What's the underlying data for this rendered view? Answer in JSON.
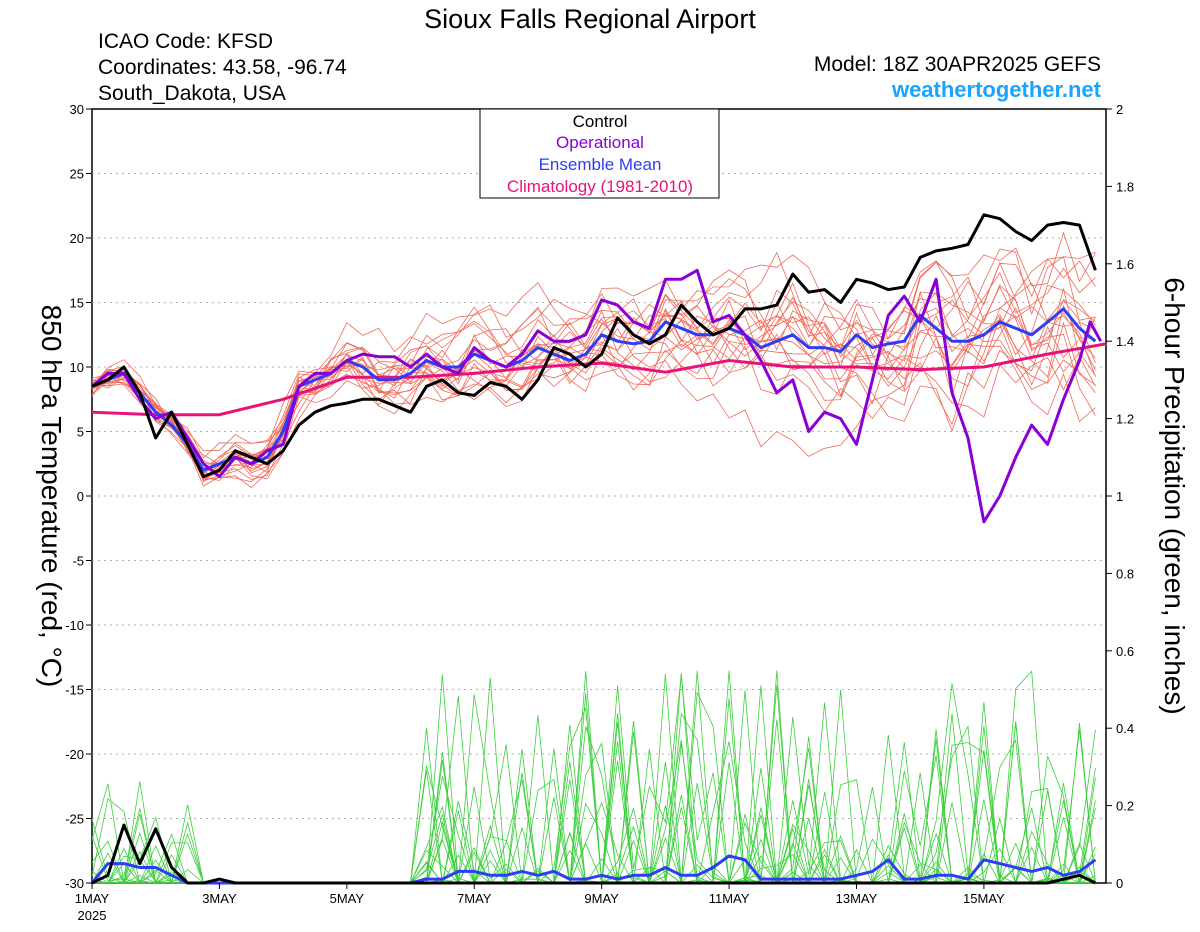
{
  "header": {
    "title": "Sioux Falls Regional Airport",
    "icao": "ICAO Code: KFSD",
    "coordinates": "Coordinates: 43.58, -96.74",
    "region": "South_Dakota, USA",
    "model": "Model: 18Z 30APR2025 GEFS",
    "site": "weathertogether.net"
  },
  "chart_data": {
    "type": "line",
    "title": "Sioux Falls Regional Airport",
    "xlabel": "",
    "ylabel": "850 hPa Temperature (red, °C)",
    "y2label": "6-hour Precipitation (green, inches)",
    "ylim": [
      -30,
      30
    ],
    "y2lim": [
      0,
      2
    ],
    "xlim_hours": [
      0,
      382
    ],
    "x_ticks": [
      {
        "label": "1MAY",
        "sub": "2025",
        "hour": 0
      },
      {
        "label": "3MAY",
        "hour": 48
      },
      {
        "label": "5MAY",
        "hour": 96
      },
      {
        "label": "7MAY",
        "hour": 144
      },
      {
        "label": "9MAY",
        "hour": 192
      },
      {
        "label": "11MAY",
        "hour": 240
      },
      {
        "label": "13MAY",
        "hour": 288
      },
      {
        "label": "15MAY",
        "hour": 336
      }
    ],
    "y_ticks": [
      "30",
      "25",
      "20",
      "15",
      "10",
      "5",
      "0",
      "-5",
      "-10",
      "-15",
      "-20",
      "-25",
      "-30"
    ],
    "y2_ticks": [
      "2",
      "1.8",
      "1.6",
      "1.4",
      "1.2",
      "1",
      "0.8",
      "0.6",
      "0.4",
      "0.2",
      "0"
    ],
    "grid": true,
    "legend": {
      "position": "top-center",
      "entries": [
        {
          "label": "Control",
          "color": "#000000"
        },
        {
          "label": "Operational",
          "color": "#8a00d4"
        },
        {
          "label": "Ensemble Mean",
          "color": "#2d3ef5"
        },
        {
          "label": "Climatology (1981-2010)",
          "color": "#e8127a"
        }
      ]
    },
    "colors": {
      "members": "#f06a5a",
      "precip_members": "#3ccf3c",
      "control": "#000000",
      "operational": "#8a00d4",
      "ensemble_mean": "#2d3ef5",
      "climatology": "#e8127a"
    },
    "series_temperature": {
      "control": [
        [
          0,
          8.5
        ],
        [
          6,
          9
        ],
        [
          12,
          10
        ],
        [
          18,
          8
        ],
        [
          24,
          4.5
        ],
        [
          30,
          6.5
        ],
        [
          36,
          4
        ],
        [
          42,
          1.5
        ],
        [
          48,
          2
        ],
        [
          54,
          3.5
        ],
        [
          60,
          3
        ],
        [
          66,
          2.5
        ],
        [
          72,
          3.5
        ],
        [
          78,
          5.5
        ],
        [
          84,
          6.5
        ],
        [
          90,
          7
        ],
        [
          96,
          7.2
        ],
        [
          102,
          7.5
        ],
        [
          108,
          7.5
        ],
        [
          114,
          7
        ],
        [
          120,
          6.5
        ],
        [
          126,
          8.5
        ],
        [
          132,
          9
        ],
        [
          138,
          8
        ],
        [
          144,
          7.8
        ],
        [
          150,
          8.8
        ],
        [
          156,
          8.5
        ],
        [
          162,
          7.5
        ],
        [
          168,
          9
        ],
        [
          174,
          11.5
        ],
        [
          180,
          11
        ],
        [
          186,
          10
        ],
        [
          192,
          11
        ],
        [
          198,
          13.8
        ],
        [
          204,
          12.5
        ],
        [
          210,
          11.8
        ],
        [
          216,
          12.5
        ],
        [
          222,
          14.8
        ],
        [
          228,
          13.5
        ],
        [
          234,
          12.5
        ],
        [
          240,
          13
        ],
        [
          246,
          14.5
        ],
        [
          252,
          14.5
        ],
        [
          258,
          14.8
        ],
        [
          264,
          17.2
        ],
        [
          270,
          15.8
        ],
        [
          276,
          16
        ],
        [
          282,
          15
        ],
        [
          288,
          16.8
        ],
        [
          294,
          16.5
        ],
        [
          300,
          16
        ],
        [
          306,
          16.2
        ],
        [
          312,
          18.5
        ],
        [
          318,
          19
        ],
        [
          324,
          19.2
        ],
        [
          330,
          19.5
        ],
        [
          336,
          21.8
        ],
        [
          342,
          21.5
        ],
        [
          348,
          20.5
        ],
        [
          354,
          19.8
        ],
        [
          360,
          21
        ],
        [
          366,
          21.2
        ],
        [
          372,
          21
        ],
        [
          378,
          17.5
        ]
      ],
      "operational": [
        [
          0,
          8.5
        ],
        [
          6,
          9.5
        ],
        [
          12,
          9.5
        ],
        [
          18,
          7.5
        ],
        [
          24,
          6
        ],
        [
          30,
          6.5
        ],
        [
          36,
          4.5
        ],
        [
          42,
          2.5
        ],
        [
          48,
          1.5
        ],
        [
          54,
          3
        ],
        [
          60,
          2.5
        ],
        [
          66,
          3.5
        ],
        [
          72,
          4
        ],
        [
          78,
          8.5
        ],
        [
          84,
          9.5
        ],
        [
          90,
          9.5
        ],
        [
          96,
          10.5
        ],
        [
          102,
          11
        ],
        [
          108,
          10.8
        ],
        [
          114,
          10.8
        ],
        [
          120,
          10
        ],
        [
          126,
          11
        ],
        [
          132,
          10
        ],
        [
          138,
          9.5
        ],
        [
          144,
          11.5
        ],
        [
          150,
          10.5
        ],
        [
          156,
          10
        ],
        [
          162,
          11
        ],
        [
          168,
          12.8
        ],
        [
          174,
          12
        ],
        [
          180,
          12
        ],
        [
          186,
          12.5
        ],
        [
          192,
          15.2
        ],
        [
          198,
          14.8
        ],
        [
          204,
          13.5
        ],
        [
          210,
          13
        ],
        [
          216,
          16.8
        ],
        [
          222,
          16.8
        ],
        [
          228,
          17.5
        ],
        [
          234,
          13.5
        ],
        [
          240,
          14
        ],
        [
          246,
          12.5
        ],
        [
          252,
          10.5
        ],
        [
          258,
          8
        ],
        [
          264,
          9
        ],
        [
          270,
          5
        ],
        [
          276,
          6.5
        ],
        [
          282,
          6
        ],
        [
          288,
          4
        ],
        [
          294,
          9
        ],
        [
          300,
          14
        ],
        [
          306,
          15.5
        ],
        [
          312,
          13.5
        ],
        [
          318,
          16.8
        ],
        [
          324,
          8
        ],
        [
          330,
          4.5
        ],
        [
          336,
          -2
        ],
        [
          342,
          0
        ],
        [
          348,
          3
        ],
        [
          354,
          5.5
        ],
        [
          360,
          4
        ],
        [
          366,
          7.5
        ],
        [
          372,
          10.5
        ],
        [
          376,
          13.5
        ],
        [
          380,
          12
        ]
      ],
      "ensemble_mean": [
        [
          0,
          8.5
        ],
        [
          6,
          9
        ],
        [
          12,
          9.5
        ],
        [
          18,
          8
        ],
        [
          24,
          6.5
        ],
        [
          30,
          5.5
        ],
        [
          36,
          4
        ],
        [
          42,
          2
        ],
        [
          48,
          2.5
        ],
        [
          54,
          3
        ],
        [
          60,
          2.5
        ],
        [
          66,
          3
        ],
        [
          72,
          5
        ],
        [
          78,
          8.5
        ],
        [
          84,
          9
        ],
        [
          90,
          9.5
        ],
        [
          96,
          10.5
        ],
        [
          102,
          10
        ],
        [
          108,
          9
        ],
        [
          114,
          9
        ],
        [
          120,
          9.5
        ],
        [
          126,
          10.5
        ],
        [
          132,
          10
        ],
        [
          138,
          10
        ],
        [
          144,
          11
        ],
        [
          150,
          10.5
        ],
        [
          156,
          10
        ],
        [
          162,
          10.5
        ],
        [
          168,
          11.5
        ],
        [
          174,
          11
        ],
        [
          180,
          10.5
        ],
        [
          186,
          11
        ],
        [
          192,
          12.5
        ],
        [
          198,
          12
        ],
        [
          204,
          11.8
        ],
        [
          210,
          12
        ],
        [
          216,
          13.5
        ],
        [
          222,
          13
        ],
        [
          228,
          12.5
        ],
        [
          234,
          12.5
        ],
        [
          240,
          13
        ],
        [
          246,
          12.5
        ],
        [
          252,
          11.5
        ],
        [
          258,
          12
        ],
        [
          264,
          12.5
        ],
        [
          270,
          11.5
        ],
        [
          276,
          11.5
        ],
        [
          282,
          11.2
        ],
        [
          288,
          12.5
        ],
        [
          294,
          11.5
        ],
        [
          300,
          11.8
        ],
        [
          306,
          12
        ],
        [
          312,
          14
        ],
        [
          318,
          13
        ],
        [
          324,
          12
        ],
        [
          330,
          12
        ],
        [
          336,
          12.5
        ],
        [
          342,
          13.5
        ],
        [
          348,
          13
        ],
        [
          354,
          12.5
        ],
        [
          360,
          13.5
        ],
        [
          366,
          14.5
        ],
        [
          372,
          13
        ],
        [
          378,
          12
        ]
      ],
      "climatology": [
        [
          0,
          6.5
        ],
        [
          24,
          6.3
        ],
        [
          48,
          6.3
        ],
        [
          72,
          7.5
        ],
        [
          96,
          9.2
        ],
        [
          120,
          9.2
        ],
        [
          144,
          9.5
        ],
        [
          168,
          10
        ],
        [
          192,
          10.3
        ],
        [
          216,
          9.6
        ],
        [
          240,
          10.5
        ],
        [
          264,
          10
        ],
        [
          288,
          10
        ],
        [
          312,
          9.8
        ],
        [
          336,
          10
        ],
        [
          360,
          11
        ],
        [
          382,
          11.8
        ]
      ]
    },
    "series_precip": {
      "control": [
        [
          0,
          0
        ],
        [
          6,
          0.02
        ],
        [
          12,
          0.15
        ],
        [
          18,
          0.05
        ],
        [
          24,
          0.14
        ],
        [
          30,
          0.04
        ],
        [
          36,
          0
        ],
        [
          42,
          0
        ],
        [
          48,
          0.01
        ],
        [
          54,
          0
        ],
        [
          60,
          0
        ],
        [
          72,
          0
        ],
        [
          96,
          0
        ],
        [
          120,
          0
        ],
        [
          144,
          0
        ],
        [
          168,
          0
        ],
        [
          192,
          0
        ],
        [
          216,
          0
        ],
        [
          240,
          0
        ],
        [
          264,
          0
        ],
        [
          288,
          0
        ],
        [
          312,
          0
        ],
        [
          336,
          0
        ],
        [
          360,
          0
        ],
        [
          372,
          0.02
        ],
        [
          378,
          0
        ]
      ],
      "ensemble_mean": [
        [
          0,
          0
        ],
        [
          6,
          0.05
        ],
        [
          12,
          0.05
        ],
        [
          18,
          0.04
        ],
        [
          24,
          0.04
        ],
        [
          30,
          0.02
        ],
        [
          36,
          0
        ],
        [
          42,
          0
        ],
        [
          48,
          0
        ],
        [
          96,
          0
        ],
        [
          120,
          0
        ],
        [
          126,
          0.01
        ],
        [
          132,
          0.01
        ],
        [
          138,
          0.03
        ],
        [
          144,
          0.03
        ],
        [
          150,
          0.02
        ],
        [
          156,
          0.02
        ],
        [
          162,
          0.03
        ],
        [
          168,
          0.02
        ],
        [
          174,
          0.03
        ],
        [
          180,
          0.01
        ],
        [
          186,
          0.01
        ],
        [
          192,
          0.02
        ],
        [
          198,
          0.01
        ],
        [
          204,
          0.02
        ],
        [
          210,
          0.02
        ],
        [
          216,
          0.04
        ],
        [
          222,
          0.02
        ],
        [
          228,
          0.02
        ],
        [
          234,
          0.04
        ],
        [
          240,
          0.07
        ],
        [
          246,
          0.06
        ],
        [
          252,
          0.01
        ],
        [
          258,
          0.01
        ],
        [
          264,
          0.01
        ],
        [
          270,
          0.01
        ],
        [
          276,
          0.01
        ],
        [
          282,
          0.01
        ],
        [
          288,
          0.02
        ],
        [
          294,
          0.03
        ],
        [
          300,
          0.06
        ],
        [
          306,
          0.01
        ],
        [
          312,
          0.01
        ],
        [
          318,
          0.02
        ],
        [
          324,
          0.02
        ],
        [
          330,
          0.01
        ],
        [
          336,
          0.06
        ],
        [
          342,
          0.05
        ],
        [
          348,
          0.04
        ],
        [
          354,
          0.03
        ],
        [
          360,
          0.04
        ],
        [
          366,
          0.02
        ],
        [
          372,
          0.03
        ],
        [
          378,
          0.06
        ]
      ]
    },
    "ensemble_members_note_count": 20,
    "precip_members_note_count": 20
  }
}
